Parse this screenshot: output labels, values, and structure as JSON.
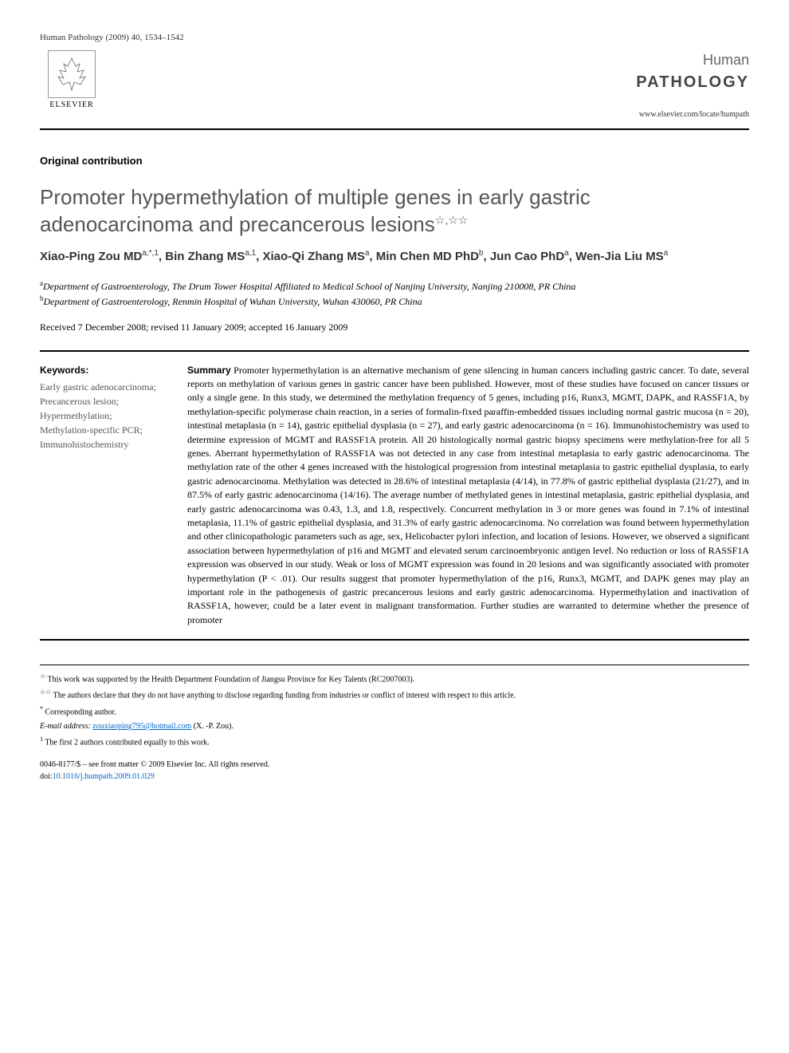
{
  "header": {
    "citation": "Human Pathology (2009) 40, 1534–1542",
    "publisher": "ELSEVIER",
    "journal_top": "Human",
    "journal_bottom": "PATHOLOGY",
    "journal_url": "www.elsevier.com/locate/humpath"
  },
  "article_type": "Original contribution",
  "title": "Promoter hypermethylation of multiple genes in early gastric adenocarcinoma and precancerous lesions",
  "title_marks": "☆,☆☆",
  "authors": [
    {
      "name": "Xiao-Ping Zou MD",
      "sup": "a,*,1"
    },
    {
      "name": "Bin Zhang MS",
      "sup": "a,1"
    },
    {
      "name": "Xiao-Qi Zhang MS",
      "sup": "a"
    },
    {
      "name": "Min Chen MD PhD",
      "sup": "b"
    },
    {
      "name": "Jun Cao PhD",
      "sup": "a"
    },
    {
      "name": "Wen-Jia Liu MS",
      "sup": "a"
    }
  ],
  "affiliations": [
    {
      "sup": "a",
      "text": "Department of Gastroenterology, The Drum Tower Hospital Affiliated to Medical School of Nanjing University, Nanjing 210008, PR China"
    },
    {
      "sup": "b",
      "text": "Department of Gastroenterology, Renmin Hospital of Wuhan University, Wuhan 430060, PR China"
    }
  ],
  "dates": "Received 7 December 2008; revised 11 January 2009; accepted 16 January 2009",
  "keywords": {
    "heading": "Keywords:",
    "items": [
      "Early gastric adenocarcinoma;",
      "Precancerous lesion;",
      "Hypermethylation;",
      "Methylation-specific PCR;",
      "Immunohistochemistry"
    ]
  },
  "summary": {
    "label": "Summary",
    "text": " Promoter hypermethylation is an alternative mechanism of gene silencing in human cancers including gastric cancer. To date, several reports on methylation of various genes in gastric cancer have been published. However, most of these studies have focused on cancer tissues or only a single gene. In this study, we determined the methylation frequency of 5 genes, including p16, Runx3, MGMT, DAPK, and RASSF1A, by methylation-specific polymerase chain reaction, in a series of formalin-fixed paraffin-embedded tissues including normal gastric mucosa (n = 20), intestinal metaplasia (n = 14), gastric epithelial dysplasia (n = 27), and early gastric adenocarcinoma (n = 16). Immunohistochemistry was used to determine expression of MGMT and RASSF1A protein. All 20 histologically normal gastric biopsy specimens were methylation-free for all 5 genes. Aberrant hypermethylation of RASSF1A was not detected in any case from intestinal metaplasia to early gastric adenocarcinoma. The methylation rate of the other 4 genes increased with the histological progression from intestinal metaplasia to gastric epithelial dysplasia, to early gastric adenocarcinoma. Methylation was detected in 28.6% of intestinal metaplasia (4/14), in 77.8% of gastric epithelial dysplasia (21/27), and in 87.5% of early gastric adenocarcinoma (14/16). The average number of methylated genes in intestinal metaplasia, gastric epithelial dysplasia, and early gastric adenocarcinoma was 0.43, 1.3, and 1.8, respectively. Concurrent methylation in 3 or more genes was found in 7.1% of intestinal metaplasia, 11.1% of gastric epithelial dysplasia, and 31.3% of early gastric adenocarcinoma. No correlation was found between hypermethylation and other clinicopathologic parameters such as age, sex, Helicobacter pylori infection, and location of lesions. However, we observed a significant association between hypermethylation of p16 and MGMT and elevated serum carcinoembryonic antigen level. No reduction or loss of RASSF1A expression was observed in our study. Weak or loss of MGMT expression was found in 20 lesions and was significantly associated with promoter hypermethylation (P < .01). Our results suggest that promoter hypermethylation of the p16, Runx3, MGMT, and DAPK genes may play an important role in the pathogenesis of gastric precancerous lesions and early gastric adenocarcinoma. Hypermethylation and inactivation of RASSF1A, however, could be a later event in malignant transformation. Further studies are warranted to determine whether the presence of promoter"
  },
  "footnotes": {
    "f1": {
      "mark": "☆",
      "text": "This work was supported by the Health Department Foundation of Jiangsu Province for Key Talents (RC2007003)."
    },
    "f2": {
      "mark": "☆☆",
      "text": "The authors declare that they do not have anything to disclose regarding funding from industries or conflict of interest with respect to this article."
    },
    "f3": {
      "mark": "*",
      "text": "Corresponding author."
    },
    "email_label": "E-mail address:",
    "email": "zouxiaoping795@hotmail.com",
    "email_suffix": " (X. -P. Zou).",
    "f4": {
      "mark": "1",
      "text": "The first 2 authors contributed equally to this work."
    }
  },
  "copyright": {
    "line1": "0046-8177/$ – see front matter © 2009 Elsevier Inc. All rights reserved.",
    "doi_prefix": "doi:",
    "doi": "10.1016/j.humpath.2009.01.029"
  }
}
